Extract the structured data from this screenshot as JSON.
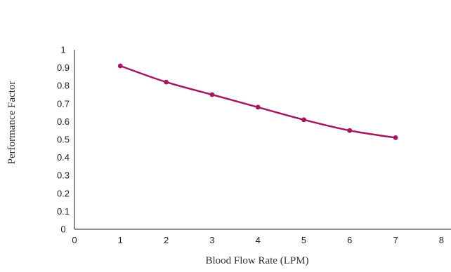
{
  "chart_data": {
    "type": "line",
    "title": "",
    "xlabel": "Blood Flow Rate (LPM)",
    "ylabel": "Performance Factor",
    "xlim": [
      0,
      8
    ],
    "ylim": [
      0,
      1
    ],
    "x_ticks": [
      "0",
      "1",
      "2",
      "3",
      "4",
      "5",
      "6",
      "7",
      "8"
    ],
    "y_ticks": [
      "0",
      "0.1",
      "0.2",
      "0.3",
      "0.4",
      "0.5",
      "0.6",
      "0.7",
      "0.8",
      "0.9",
      "1"
    ],
    "grid": false,
    "legend": "none",
    "series": [
      {
        "color": "#a3175f",
        "x": [
          1,
          2,
          3,
          4,
          5,
          6,
          7
        ],
        "y": [
          0.91,
          0.82,
          0.75,
          0.68,
          0.61,
          0.55,
          0.51
        ]
      }
    ]
  }
}
